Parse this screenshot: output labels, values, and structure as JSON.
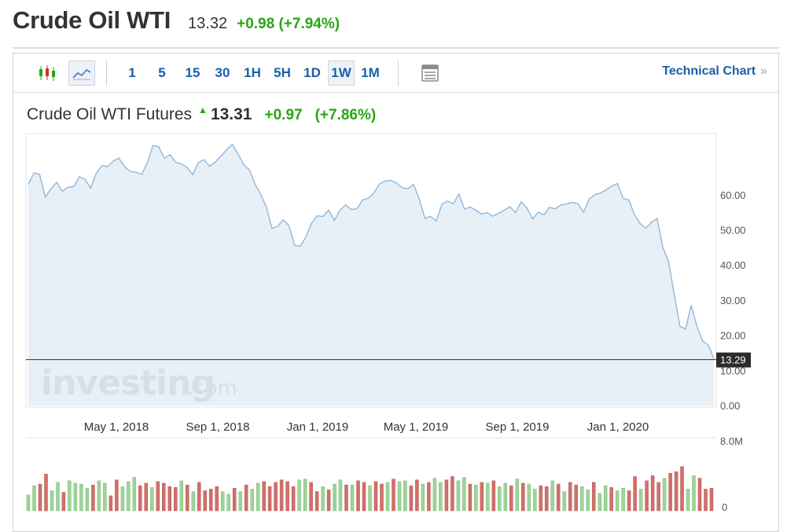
{
  "header": {
    "title": "Crude Oil WTI",
    "price": "13.32",
    "change": "+0.98 (+7.94%)"
  },
  "toolbar": {
    "intervals": [
      "1",
      "5",
      "15",
      "30",
      "1H",
      "5H",
      "1D",
      "1W",
      "1M"
    ],
    "active_interval": "1W",
    "technical_link": "Technical Chart",
    "link_arrow": "»"
  },
  "chart_header": {
    "name": "Crude Oil WTI Futures",
    "price": "13.31",
    "change": "+0.97",
    "percent": "(+7.86%)"
  },
  "watermark": {
    "main": "investing",
    "suffix": ".com"
  },
  "colors": {
    "line": "#8fb7dc",
    "area": "#e3edf5",
    "up_volume": "#9ed39a",
    "down_volume": "#d0706b",
    "positive": "#2aa512",
    "link": "#1b5fa8"
  },
  "chart_data": {
    "type": "area",
    "x_tick_labels": [
      "May 1, 2018",
      "Sep 1, 2018",
      "Jan 1, 2019",
      "May 1, 2019",
      "Sep 1, 2019",
      "Jan 1, 2020"
    ],
    "y_tick_labels": [
      "60.00",
      "50.00",
      "40.00",
      "30.00",
      "20.00",
      "10.00",
      "0.00"
    ],
    "y_ticks": [
      60,
      50,
      40,
      30,
      20,
      10,
      0
    ],
    "ylim": [
      0,
      78
    ],
    "last_price_label": "13.29",
    "last_price": 13.29,
    "values": [
      62.9,
      66.2,
      65.8,
      59.3,
      61.7,
      63.5,
      61.0,
      62.1,
      62.3,
      65.1,
      64.4,
      61.9,
      66.1,
      68.3,
      68.0,
      69.6,
      70.4,
      68.0,
      66.6,
      66.4,
      65.8,
      69.0,
      74.0,
      73.7,
      70.4,
      71.4,
      69.2,
      68.8,
      67.8,
      65.7,
      69.1,
      70.0,
      68.1,
      69.3,
      71.0,
      72.8,
      74.3,
      71.7,
      68.6,
      67.1,
      63.1,
      60.2,
      56.5,
      50.4,
      51.0,
      52.9,
      51.2,
      45.6,
      45.3,
      48.0,
      51.9,
      54.0,
      53.8,
      55.6,
      52.7,
      55.6,
      57.1,
      55.8,
      56.0,
      58.5,
      59.0,
      60.5,
      63.1,
      63.9,
      64.1,
      63.3,
      62.0,
      61.7,
      62.9,
      58.7,
      53.3,
      53.8,
      52.5,
      57.3,
      58.2,
      57.4,
      60.2,
      55.9,
      56.5,
      55.6,
      54.5,
      54.9,
      53.9,
      54.7,
      55.6,
      56.6,
      54.9,
      58.0,
      56.2,
      53.1,
      55.0,
      54.3,
      56.4,
      56.0,
      57.1,
      57.4,
      57.8,
      57.5,
      55.0,
      58.8,
      60.0,
      60.5,
      61.4,
      62.5,
      63.2,
      58.9,
      58.5,
      54.2,
      51.8,
      50.5,
      52.2,
      53.2,
      45.0,
      41.0,
      31.6,
      22.5,
      21.8,
      28.5,
      22.6,
      18.4,
      17.2,
      13.3
    ]
  },
  "volume_data": {
    "y_tick_labels": [
      "8.0M",
      "0"
    ],
    "ylim": [
      0,
      8000000
    ],
    "bars": [
      {
        "v": 1900000,
        "up": true
      },
      {
        "v": 3000000,
        "up": true
      },
      {
        "v": 3200000,
        "up": false
      },
      {
        "v": 4400000,
        "up": false
      },
      {
        "v": 2400000,
        "up": true
      },
      {
        "v": 3400000,
        "up": true
      },
      {
        "v": 2200000,
        "up": false
      },
      {
        "v": 3600000,
        "up": true
      },
      {
        "v": 3300000,
        "up": true
      },
      {
        "v": 3200000,
        "up": true
      },
      {
        "v": 2700000,
        "up": true
      },
      {
        "v": 3100000,
        "up": false
      },
      {
        "v": 3600000,
        "up": true
      },
      {
        "v": 3300000,
        "up": true
      },
      {
        "v": 1800000,
        "up": false
      },
      {
        "v": 3700000,
        "up": false
      },
      {
        "v": 2900000,
        "up": true
      },
      {
        "v": 3500000,
        "up": true
      },
      {
        "v": 4000000,
        "up": true
      },
      {
        "v": 3000000,
        "up": false
      },
      {
        "v": 3300000,
        "up": false
      },
      {
        "v": 2800000,
        "up": true
      },
      {
        "v": 3500000,
        "up": false
      },
      {
        "v": 3300000,
        "up": false
      },
      {
        "v": 2900000,
        "up": false
      },
      {
        "v": 2800000,
        "up": false
      },
      {
        "v": 3600000,
        "up": true
      },
      {
        "v": 3100000,
        "up": false
      },
      {
        "v": 2300000,
        "up": true
      },
      {
        "v": 3400000,
        "up": false
      },
      {
        "v": 2400000,
        "up": false
      },
      {
        "v": 2600000,
        "up": false
      },
      {
        "v": 2900000,
        "up": false
      },
      {
        "v": 2300000,
        "up": true
      },
      {
        "v": 2000000,
        "up": true
      },
      {
        "v": 2700000,
        "up": false
      },
      {
        "v": 2300000,
        "up": true
      },
      {
        "v": 3100000,
        "up": false
      },
      {
        "v": 2600000,
        "up": true
      },
      {
        "v": 3300000,
        "up": true
      },
      {
        "v": 3500000,
        "up": false
      },
      {
        "v": 2900000,
        "up": false
      },
      {
        "v": 3400000,
        "up": false
      },
      {
        "v": 3700000,
        "up": false
      },
      {
        "v": 3500000,
        "up": false
      },
      {
        "v": 2900000,
        "up": false
      },
      {
        "v": 3700000,
        "up": true
      },
      {
        "v": 3800000,
        "up": true
      },
      {
        "v": 3400000,
        "up": false
      },
      {
        "v": 2300000,
        "up": false
      },
      {
        "v": 2900000,
        "up": true
      },
      {
        "v": 2500000,
        "up": false
      },
      {
        "v": 3200000,
        "up": true
      },
      {
        "v": 3700000,
        "up": true
      },
      {
        "v": 3100000,
        "up": false
      },
      {
        "v": 3100000,
        "up": true
      },
      {
        "v": 3600000,
        "up": false
      },
      {
        "v": 3400000,
        "up": false
      },
      {
        "v": 3000000,
        "up": true
      },
      {
        "v": 3500000,
        "up": false
      },
      {
        "v": 3200000,
        "up": false
      },
      {
        "v": 3400000,
        "up": true
      },
      {
        "v": 3800000,
        "up": false
      },
      {
        "v": 3500000,
        "up": true
      },
      {
        "v": 3600000,
        "up": true
      },
      {
        "v": 3000000,
        "up": false
      },
      {
        "v": 3700000,
        "up": false
      },
      {
        "v": 3200000,
        "up": true
      },
      {
        "v": 3400000,
        "up": false
      },
      {
        "v": 3900000,
        "up": true
      },
      {
        "v": 3400000,
        "up": true
      },
      {
        "v": 3700000,
        "up": false
      },
      {
        "v": 4100000,
        "up": false
      },
      {
        "v": 3600000,
        "up": true
      },
      {
        "v": 4000000,
        "up": true
      },
      {
        "v": 3200000,
        "up": false
      },
      {
        "v": 3100000,
        "up": true
      },
      {
        "v": 3400000,
        "up": false
      },
      {
        "v": 3300000,
        "up": true
      },
      {
        "v": 3600000,
        "up": false
      },
      {
        "v": 2900000,
        "up": true
      },
      {
        "v": 3300000,
        "up": true
      },
      {
        "v": 3000000,
        "up": false
      },
      {
        "v": 3800000,
        "up": true
      },
      {
        "v": 3300000,
        "up": false
      },
      {
        "v": 3200000,
        "up": true
      },
      {
        "v": 2600000,
        "up": true
      },
      {
        "v": 3000000,
        "up": false
      },
      {
        "v": 2900000,
        "up": false
      },
      {
        "v": 3600000,
        "up": true
      },
      {
        "v": 3200000,
        "up": false
      },
      {
        "v": 2300000,
        "up": true
      },
      {
        "v": 3400000,
        "up": false
      },
      {
        "v": 3100000,
        "up": false
      },
      {
        "v": 2900000,
        "up": true
      },
      {
        "v": 2500000,
        "up": true
      },
      {
        "v": 3400000,
        "up": false
      },
      {
        "v": 2100000,
        "up": true
      },
      {
        "v": 3000000,
        "up": true
      },
      {
        "v": 2800000,
        "up": false
      },
      {
        "v": 2400000,
        "up": true
      },
      {
        "v": 2700000,
        "up": true
      },
      {
        "v": 2400000,
        "up": false
      },
      {
        "v": 4100000,
        "up": false
      },
      {
        "v": 2600000,
        "up": true
      },
      {
        "v": 3600000,
        "up": false
      },
      {
        "v": 4200000,
        "up": false
      },
      {
        "v": 3400000,
        "up": false
      },
      {
        "v": 3900000,
        "up": true
      },
      {
        "v": 4500000,
        "up": false
      },
      {
        "v": 4700000,
        "up": false
      },
      {
        "v": 5300000,
        "up": false
      },
      {
        "v": 2600000,
        "up": true
      },
      {
        "v": 4200000,
        "up": true
      },
      {
        "v": 3900000,
        "up": false
      },
      {
        "v": 2600000,
        "up": false
      },
      {
        "v": 2700000,
        "up": false
      }
    ]
  }
}
